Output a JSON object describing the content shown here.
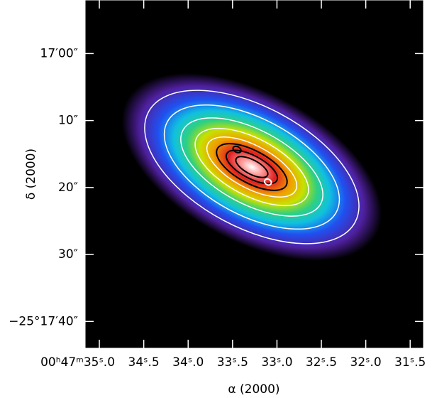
{
  "chart_data": {
    "type": "image",
    "xlabel": "α (2000)",
    "ylabel": "δ (2000)",
    "xlim": [
      35.16,
      31.35
    ],
    "xticks": [
      {
        "value": 35.0,
        "label": "00ʰ47ᵐ35ˢ.0"
      },
      {
        "value": 34.5,
        "label": "34ˢ.5"
      },
      {
        "value": 34.0,
        "label": "34ˢ.0"
      },
      {
        "value": 33.5,
        "label": "33ˢ.5"
      },
      {
        "value": 33.0,
        "label": "33ˢ.0"
      },
      {
        "value": 32.5,
        "label": "32ˢ.5"
      },
      {
        "value": 32.0,
        "label": "32ˢ.0"
      },
      {
        "value": 31.5,
        "label": "31ˢ.5"
      }
    ],
    "ylim": [
      44,
      -8
    ],
    "yticks": [
      {
        "value": 0,
        "label": "17′00″"
      },
      {
        "value": 10,
        "label": "10″"
      },
      {
        "value": 20,
        "label": "20″"
      },
      {
        "value": 30,
        "label": "30″"
      },
      {
        "value": 40,
        "label": "−25°17′40″"
      }
    ]
  }
}
